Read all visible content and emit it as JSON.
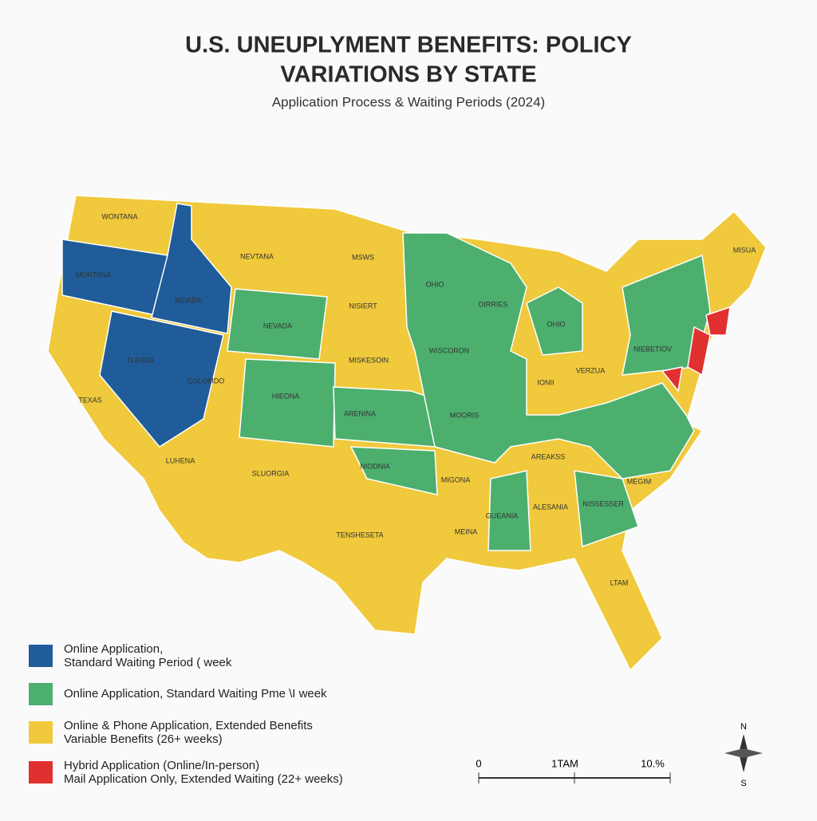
{
  "header": {
    "title": [
      "U.S. UNEUPLYMENT BENEFITS: POLICY",
      "VARIATIONS BY STATE"
    ],
    "subtitle": "Application Process & Waiting Periods (2024)"
  },
  "map_labels": [
    "WONTANA",
    "MONTANA",
    "NEVTANA",
    "MSWS",
    "NEIADA",
    "NEVADA",
    "NISIERT",
    "OHIO",
    "DIRRIES",
    "OHIO",
    "TLEXDA",
    "COLOMDO",
    "MISKESOIN",
    "WISCORON",
    "HIEONA",
    "IONII",
    "VERZUA",
    "TEXAS",
    "ARENINA",
    "MOORIS",
    "NIEBETIOV",
    "MISUA",
    "LUHENA",
    "SLUORGIA",
    "NIODNIA",
    "AREAKSS",
    "MIGONA",
    "ALESANIA",
    "NISSESSER",
    "MEGIM",
    "GUEANIA",
    "TENSHESETA",
    "MEINA",
    "LTAM"
  ],
  "legend": [
    {
      "color": "#1f5c99",
      "lines": [
        "Online Application,",
        "Standard Waiting Period ( week"
      ]
    },
    {
      "color": "#4caf6e",
      "lines": [
        "Online Application, Standard Waiting Pme \\I week"
      ]
    },
    {
      "color": "#f0c93c",
      "lines": [
        "Online & Phone Application, Extended Benefits",
        "Variable Benefits (26+ weeks)"
      ]
    },
    {
      "color": "#e03030",
      "lines": [
        "Hybrid Application (Online/In-person)",
        "Mail Application Only, Extended Waiting (22+ weeks)"
      ]
    }
  ],
  "scale_bar": [
    "0",
    "1TAM",
    "10.%"
  ],
  "compass": [
    "N",
    "S"
  ]
}
